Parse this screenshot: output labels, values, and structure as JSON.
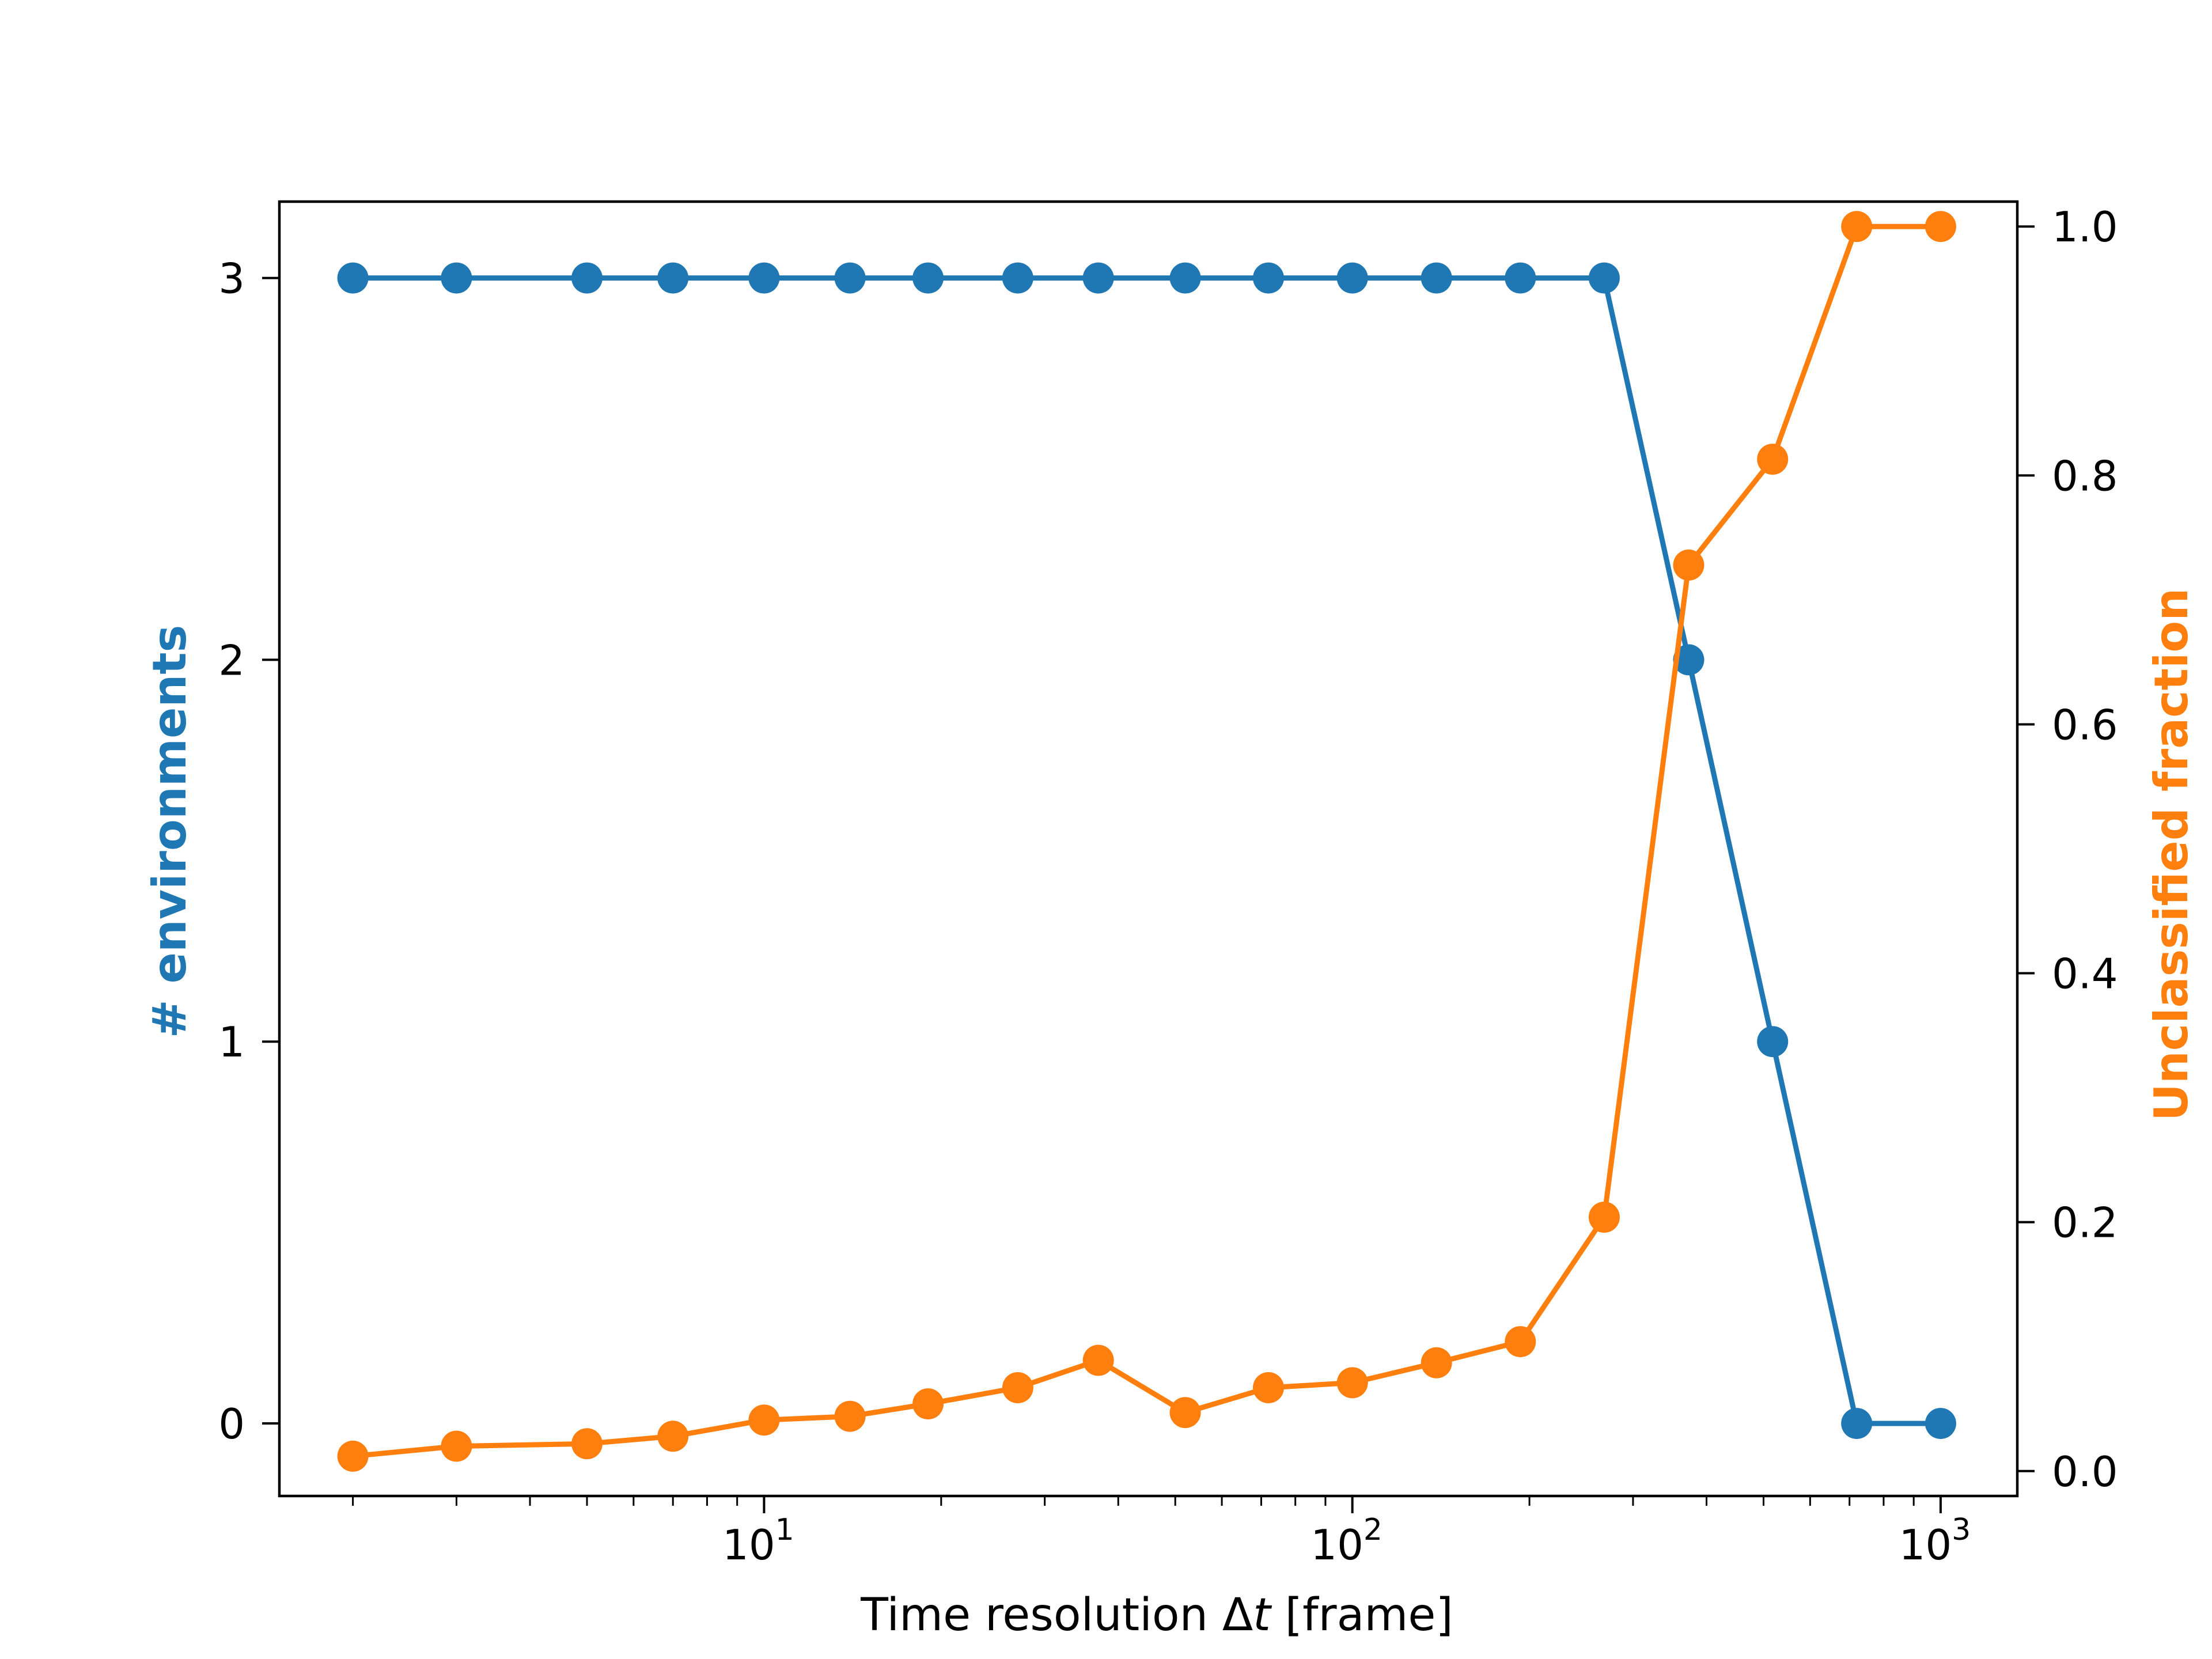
{
  "chart_data": {
    "type": "line",
    "title": "",
    "xlabel": "Time resolution Δt [frame]",
    "xlabel_parts": {
      "prefix": "Time resolution Δ",
      "italic": "t",
      "suffix": " [frame]"
    },
    "xscale": "log",
    "xlim": [
      1.5,
      1350
    ],
    "xticks": [
      {
        "value": 10,
        "base": "10",
        "exp": "1"
      },
      {
        "value": 100,
        "base": "10",
        "exp": "2"
      },
      {
        "value": 1000,
        "base": "10",
        "exp": "3"
      }
    ],
    "x": [
      2,
      3,
      5,
      7,
      10,
      14,
      19,
      27,
      37,
      52,
      72,
      100,
      139,
      193,
      268,
      373,
      518,
      720,
      1000
    ],
    "y_left": {
      "label": "# environments",
      "color": "#1f77b4",
      "lim": [
        -0.19,
        3.2
      ],
      "ticks": [
        "0",
        "1",
        "2",
        "3"
      ]
    },
    "y_right": {
      "label": "Unclassified fraction",
      "color": "#ff7f0e",
      "lim": [
        -0.02,
        1.02
      ],
      "ticks": [
        "0.0",
        "0.2",
        "0.4",
        "0.6",
        "0.8",
        "1.0"
      ]
    },
    "series": [
      {
        "axis": "left",
        "color": "#1f77b4",
        "values": [
          3,
          3,
          3,
          3,
          3,
          3,
          3,
          3,
          3,
          3,
          3,
          3,
          3,
          3,
          3,
          2,
          1,
          0,
          0
        ]
      },
      {
        "axis": "right",
        "color": "#ff7f0e",
        "values": [
          0.012,
          0.02,
          0.022,
          0.028,
          0.041,
          0.044,
          0.054,
          0.067,
          0.089,
          0.047,
          0.067,
          0.071,
          0.087,
          0.104,
          0.204,
          0.728,
          0.813,
          1.0,
          1.0
        ]
      }
    ]
  }
}
